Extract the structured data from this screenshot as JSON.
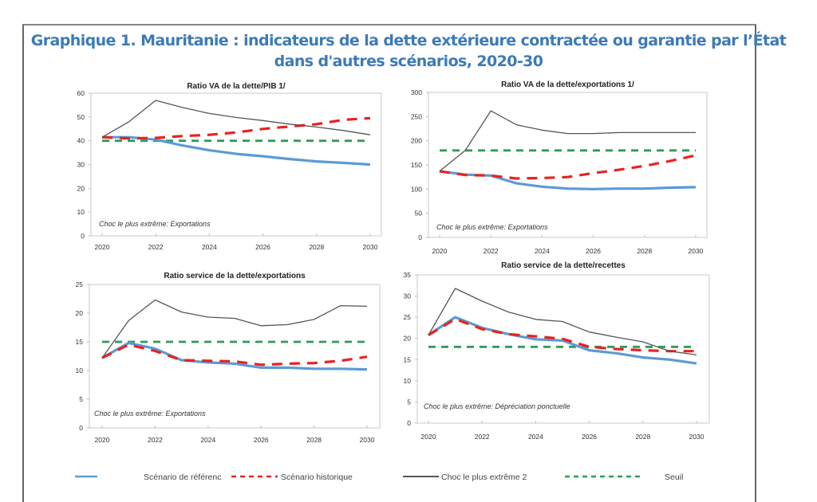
{
  "title": {
    "line1": "Graphique 1. Mauritanie : indicateurs de la dette extérieure contractée ou garantie par l’État",
    "line2": "dans d'autres scénarios, 2020-30"
  },
  "colors": {
    "title": "#3c7ab8",
    "reference": "#5b9bd5",
    "historical": "#e8231f",
    "shock": "#555555",
    "threshold": "#2e9b5b"
  },
  "legend": [
    {
      "key": "reference",
      "label": "Scénario de référenc",
      "style": "solid"
    },
    {
      "key": "historical",
      "label": "Scénario historique",
      "style": "dashed"
    },
    {
      "key": "shock",
      "label": "Choc le plus extrême 2",
      "style": "solid"
    },
    {
      "key": "threshold",
      "label": "Seuil",
      "style": "dashed"
    }
  ],
  "chart_data": [
    {
      "type": "line",
      "title": "Ratio VA de la dette/PIB 1/",
      "annotation": "Choc le plus extrême: Exportations",
      "x": [
        2020,
        2021,
        2022,
        2023,
        2024,
        2025,
        2026,
        2027,
        2028,
        2029,
        2030
      ],
      "xticks": [
        "2020",
        "2022",
        "2024",
        "2026",
        "2028",
        "2030"
      ],
      "yticks": [
        "0",
        "10",
        "20",
        "30",
        "40",
        "50",
        "60"
      ],
      "ylim": [
        0,
        60
      ],
      "grid": false,
      "series": [
        {
          "name": "Scénario de référenc",
          "key": "reference",
          "values": [
            41.5,
            41.5,
            40.5,
            38.0,
            36.0,
            34.5,
            33.5,
            32.3,
            31.3,
            30.7,
            30.0
          ]
        },
        {
          "name": "Scénario historique",
          "key": "historical",
          "values": [
            41.5,
            41.0,
            41.2,
            42.0,
            42.5,
            43.5,
            45.0,
            46.0,
            47.0,
            48.8,
            49.5
          ]
        },
        {
          "name": "Choc le plus extrême 2",
          "key": "shock",
          "values": [
            41.5,
            48.0,
            57.0,
            54.0,
            51.5,
            49.8,
            48.5,
            47.0,
            45.8,
            44.3,
            42.5
          ]
        },
        {
          "name": "Seuil",
          "key": "threshold",
          "values": [
            40,
            40,
            40,
            40,
            40,
            40,
            40,
            40,
            40,
            40,
            40
          ]
        }
      ]
    },
    {
      "type": "line",
      "title": "Ratio VA de la dette/exportations  1/",
      "annotation": "Choc le plus extrême: Exportations",
      "x": [
        2020,
        2021,
        2022,
        2023,
        2024,
        2025,
        2026,
        2027,
        2028,
        2029,
        2030
      ],
      "xticks": [
        "2020",
        "2022",
        "2024",
        "2026",
        "2028",
        "2030"
      ],
      "yticks": [
        "0",
        "50",
        "100",
        "150",
        "200",
        "250",
        "300"
      ],
      "ylim": [
        0,
        300
      ],
      "grid": false,
      "series": [
        {
          "name": "Scénario de référenc",
          "key": "reference",
          "values": [
            137,
            130,
            128,
            112,
            105,
            101,
            100,
            101,
            101,
            103,
            104
          ]
        },
        {
          "name": "Scénario historique",
          "key": "historical",
          "values": [
            137,
            129,
            128,
            122,
            123,
            125,
            133,
            140,
            148,
            158,
            170
          ]
        },
        {
          "name": "Choc le plus extrême 2",
          "key": "shock",
          "values": [
            137,
            180,
            262,
            233,
            222,
            215,
            215,
            217,
            217,
            217,
            217
          ]
        },
        {
          "name": "Seuil",
          "key": "threshold",
          "values": [
            180,
            180,
            180,
            180,
            180,
            180,
            180,
            180,
            180,
            180,
            180
          ]
        }
      ]
    },
    {
      "type": "line",
      "title": "Ratio service de la dette/exportations",
      "annotation": "Choc le plus extrême: Exportations",
      "x": [
        2020,
        2021,
        2022,
        2023,
        2024,
        2025,
        2026,
        2027,
        2028,
        2029,
        2030
      ],
      "xticks": [
        "2020",
        "2022",
        "2024",
        "2026",
        "2028",
        "2030"
      ],
      "yticks": [
        "0",
        "5",
        "10",
        "15",
        "20",
        "25"
      ],
      "ylim": [
        0,
        25
      ],
      "grid": false,
      "series": [
        {
          "name": "Scénario de référenc",
          "key": "reference",
          "values": [
            12.2,
            14.8,
            13.8,
            11.8,
            11.4,
            11.2,
            10.5,
            10.5,
            10.3,
            10.3,
            10.2
          ]
        },
        {
          "name": "Scénario historique",
          "key": "historical",
          "values": [
            12.2,
            14.5,
            13.4,
            11.8,
            11.7,
            11.6,
            11.0,
            11.2,
            11.3,
            11.7,
            12.4
          ]
        },
        {
          "name": "Choc le plus extrême 2",
          "key": "shock",
          "values": [
            12.2,
            18.7,
            22.3,
            20.2,
            19.3,
            19.1,
            17.8,
            18.0,
            18.9,
            21.3,
            21.2
          ]
        },
        {
          "name": "Seuil",
          "key": "threshold",
          "values": [
            15,
            15,
            15,
            15,
            15,
            15,
            15,
            15,
            15,
            15,
            15
          ]
        }
      ]
    },
    {
      "type": "line",
      "title": "Ratio service de la dette/recettes",
      "annotation": "Choc le plus extrême: Dépréciation ponctuelle",
      "x": [
        2020,
        2021,
        2022,
        2023,
        2024,
        2025,
        2026,
        2027,
        2028,
        2029,
        2030
      ],
      "xticks": [
        "2020",
        "2022",
        "2024",
        "2026",
        "2028",
        "2030"
      ],
      "yticks": [
        "0",
        "5",
        "10",
        "15",
        "20",
        "25",
        "30",
        "35"
      ],
      "ylim": [
        0,
        35
      ],
      "grid": false,
      "series": [
        {
          "name": "Scénario de référenc",
          "key": "reference",
          "values": [
            20.8,
            25.0,
            22.5,
            21.0,
            19.8,
            19.5,
            17.2,
            16.5,
            15.5,
            15.0,
            14.1
          ]
        },
        {
          "name": "Scénario historique",
          "key": "historical",
          "values": [
            20.8,
            24.6,
            22.2,
            21.0,
            20.5,
            19.9,
            18.0,
            17.5,
            17.2,
            17.0,
            17.0
          ]
        },
        {
          "name": "Choc le plus extrême 2",
          "key": "shock",
          "values": [
            20.8,
            31.8,
            28.8,
            26.2,
            24.5,
            24.0,
            21.5,
            20.3,
            19.2,
            17.0,
            16.1
          ]
        },
        {
          "name": "Seuil",
          "key": "threshold",
          "values": [
            18,
            18,
            18,
            18,
            18,
            18,
            18,
            18,
            18,
            18,
            18
          ]
        }
      ]
    }
  ]
}
